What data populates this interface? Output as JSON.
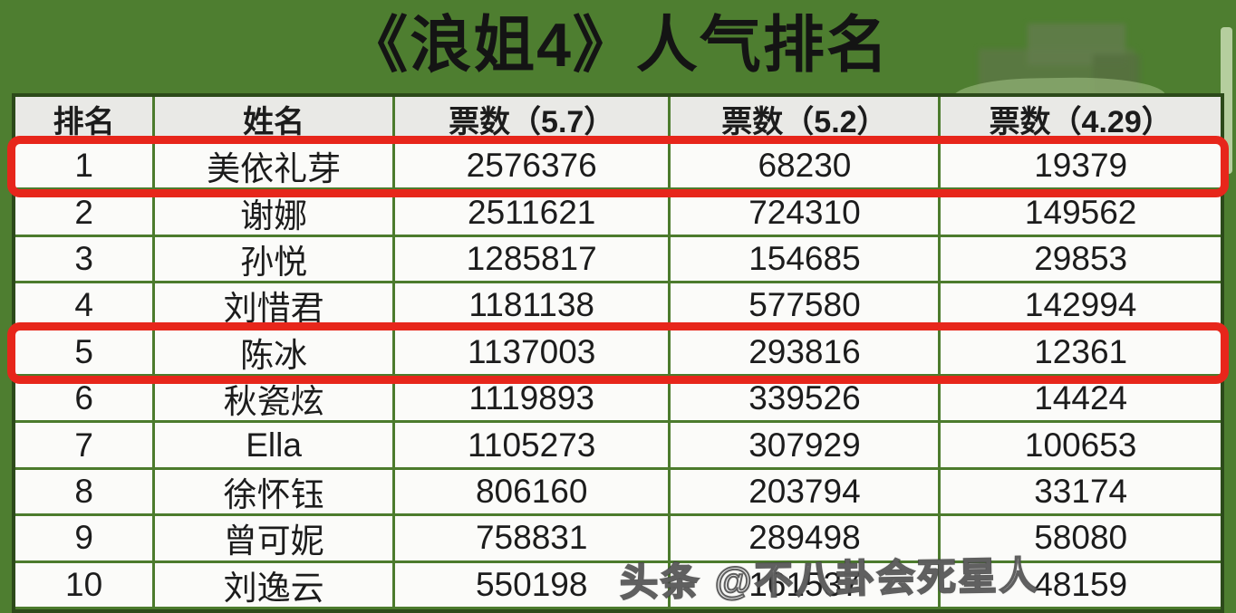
{
  "title": "《浪姐4》人气排名",
  "watermark": "头条 @不八卦会死星人",
  "colors": {
    "background_green": "#4e7e30",
    "grid_green": "#4c7b2d",
    "header_gray": "#e9e9e6",
    "cell_white": "#fbfbf9",
    "highlight_red": "#e7261b",
    "text_black": "#1c1c1c"
  },
  "chart_data": {
    "type": "table",
    "title": "《浪姐4》人气排名",
    "columns": [
      "排名",
      "姓名",
      "票数（5.7）",
      "票数（5.2）",
      "票数（4.29）"
    ],
    "rows": [
      {
        "rank": "1",
        "name": "美依礼芽",
        "v1": "2576376",
        "v2": "68230",
        "v3": "19379",
        "highlight": true
      },
      {
        "rank": "2",
        "name": "谢娜",
        "v1": "2511621",
        "v2": "724310",
        "v3": "149562",
        "highlight": false
      },
      {
        "rank": "3",
        "name": "孙悦",
        "v1": "1285817",
        "v2": "154685",
        "v3": "29853",
        "highlight": false
      },
      {
        "rank": "4",
        "name": "刘惜君",
        "v1": "1181138",
        "v2": "577580",
        "v3": "142994",
        "highlight": false
      },
      {
        "rank": "5",
        "name": "陈冰",
        "v1": "1137003",
        "v2": "293816",
        "v3": "12361",
        "highlight": true
      },
      {
        "rank": "6",
        "name": "秋瓷炫",
        "v1": "1119893",
        "v2": "339526",
        "v3": "14424",
        "highlight": false
      },
      {
        "rank": "7",
        "name": "Ella",
        "v1": "1105273",
        "v2": "307929",
        "v3": "100653",
        "highlight": false
      },
      {
        "rank": "8",
        "name": "徐怀钰",
        "v1": "806160",
        "v2": "203794",
        "v3": "33174",
        "highlight": false
      },
      {
        "rank": "9",
        "name": "曾可妮",
        "v1": "758831",
        "v2": "289498",
        "v3": "58080",
        "highlight": false
      },
      {
        "rank": "10",
        "name": "刘逸云",
        "v1": "550198",
        "v2": "161537",
        "v3": "48159",
        "highlight": false
      }
    ],
    "highlighted_ranks": [
      1,
      5
    ],
    "legend_position": "none",
    "grid": true
  }
}
